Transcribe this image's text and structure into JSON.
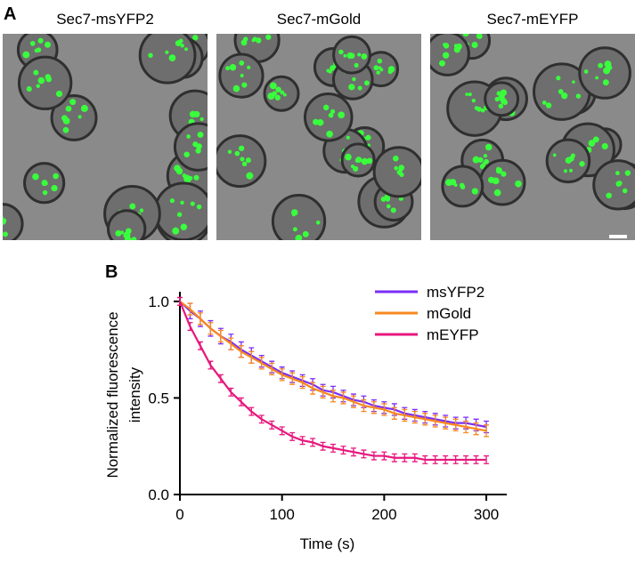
{
  "panel_a": {
    "label": "A",
    "images": [
      "Sec7-msYFP2",
      "Sec7-mGold",
      "Sec7-mEYFP"
    ]
  },
  "chart_data": {
    "type": "line",
    "label": "B",
    "x_label": "Time (s)",
    "y_label": [
      "Normalized fluorescence",
      "intensity"
    ],
    "x": [
      0,
      10,
      20,
      30,
      40,
      50,
      60,
      70,
      80,
      90,
      100,
      110,
      120,
      130,
      140,
      150,
      160,
      170,
      180,
      190,
      200,
      210,
      220,
      230,
      240,
      250,
      260,
      270,
      280,
      290,
      300
    ],
    "series": [
      {
        "name": "msYFP2",
        "color": "#7b2ff7",
        "values": [
          1.0,
          0.95,
          0.91,
          0.86,
          0.82,
          0.79,
          0.75,
          0.72,
          0.69,
          0.66,
          0.63,
          0.61,
          0.59,
          0.57,
          0.54,
          0.53,
          0.51,
          0.49,
          0.48,
          0.46,
          0.45,
          0.44,
          0.42,
          0.41,
          0.4,
          0.39,
          0.38,
          0.37,
          0.37,
          0.36,
          0.35
        ],
        "errors": [
          0.02,
          0.04,
          0.04,
          0.04,
          0.04,
          0.04,
          0.04,
          0.04,
          0.03,
          0.03,
          0.03,
          0.03,
          0.03,
          0.03,
          0.03,
          0.03,
          0.03,
          0.03,
          0.03,
          0.03,
          0.03,
          0.03,
          0.03,
          0.03,
          0.03,
          0.03,
          0.03,
          0.03,
          0.03,
          0.03,
          0.03
        ]
      },
      {
        "name": "mGold",
        "color": "#f7891f",
        "values": [
          1.0,
          0.96,
          0.91,
          0.86,
          0.82,
          0.78,
          0.74,
          0.71,
          0.68,
          0.65,
          0.62,
          0.6,
          0.58,
          0.55,
          0.53,
          0.51,
          0.5,
          0.48,
          0.46,
          0.45,
          0.44,
          0.42,
          0.41,
          0.4,
          0.39,
          0.38,
          0.37,
          0.36,
          0.35,
          0.34,
          0.33
        ],
        "errors": [
          0.02,
          0.03,
          0.03,
          0.03,
          0.03,
          0.03,
          0.03,
          0.03,
          0.03,
          0.03,
          0.03,
          0.03,
          0.03,
          0.03,
          0.03,
          0.03,
          0.03,
          0.03,
          0.03,
          0.03,
          0.03,
          0.03,
          0.03,
          0.03,
          0.03,
          0.03,
          0.03,
          0.03,
          0.03,
          0.03,
          0.03
        ]
      },
      {
        "name": "mEYFP",
        "color": "#e8177d",
        "values": [
          1.0,
          0.87,
          0.77,
          0.67,
          0.6,
          0.53,
          0.48,
          0.43,
          0.39,
          0.36,
          0.33,
          0.3,
          0.28,
          0.27,
          0.25,
          0.24,
          0.23,
          0.22,
          0.21,
          0.2,
          0.2,
          0.19,
          0.19,
          0.19,
          0.18,
          0.18,
          0.18,
          0.18,
          0.18,
          0.18,
          0.18
        ],
        "errors": [
          0.02,
          0.02,
          0.02,
          0.02,
          0.02,
          0.02,
          0.02,
          0.02,
          0.02,
          0.02,
          0.02,
          0.02,
          0.02,
          0.02,
          0.02,
          0.02,
          0.02,
          0.02,
          0.02,
          0.02,
          0.02,
          0.02,
          0.02,
          0.02,
          0.02,
          0.02,
          0.02,
          0.02,
          0.02,
          0.02,
          0.02
        ]
      }
    ],
    "xlim": [
      0,
      320
    ],
    "ylim": [
      0,
      1.05
    ],
    "xticks": [
      0,
      100,
      200,
      300
    ],
    "yticks": [
      {
        "value": 0,
        "label": "0.0"
      },
      {
        "value": 0.5,
        "label": "0.5"
      },
      {
        "value": 1,
        "label": "1.0"
      }
    ],
    "legend": "upper-right"
  }
}
